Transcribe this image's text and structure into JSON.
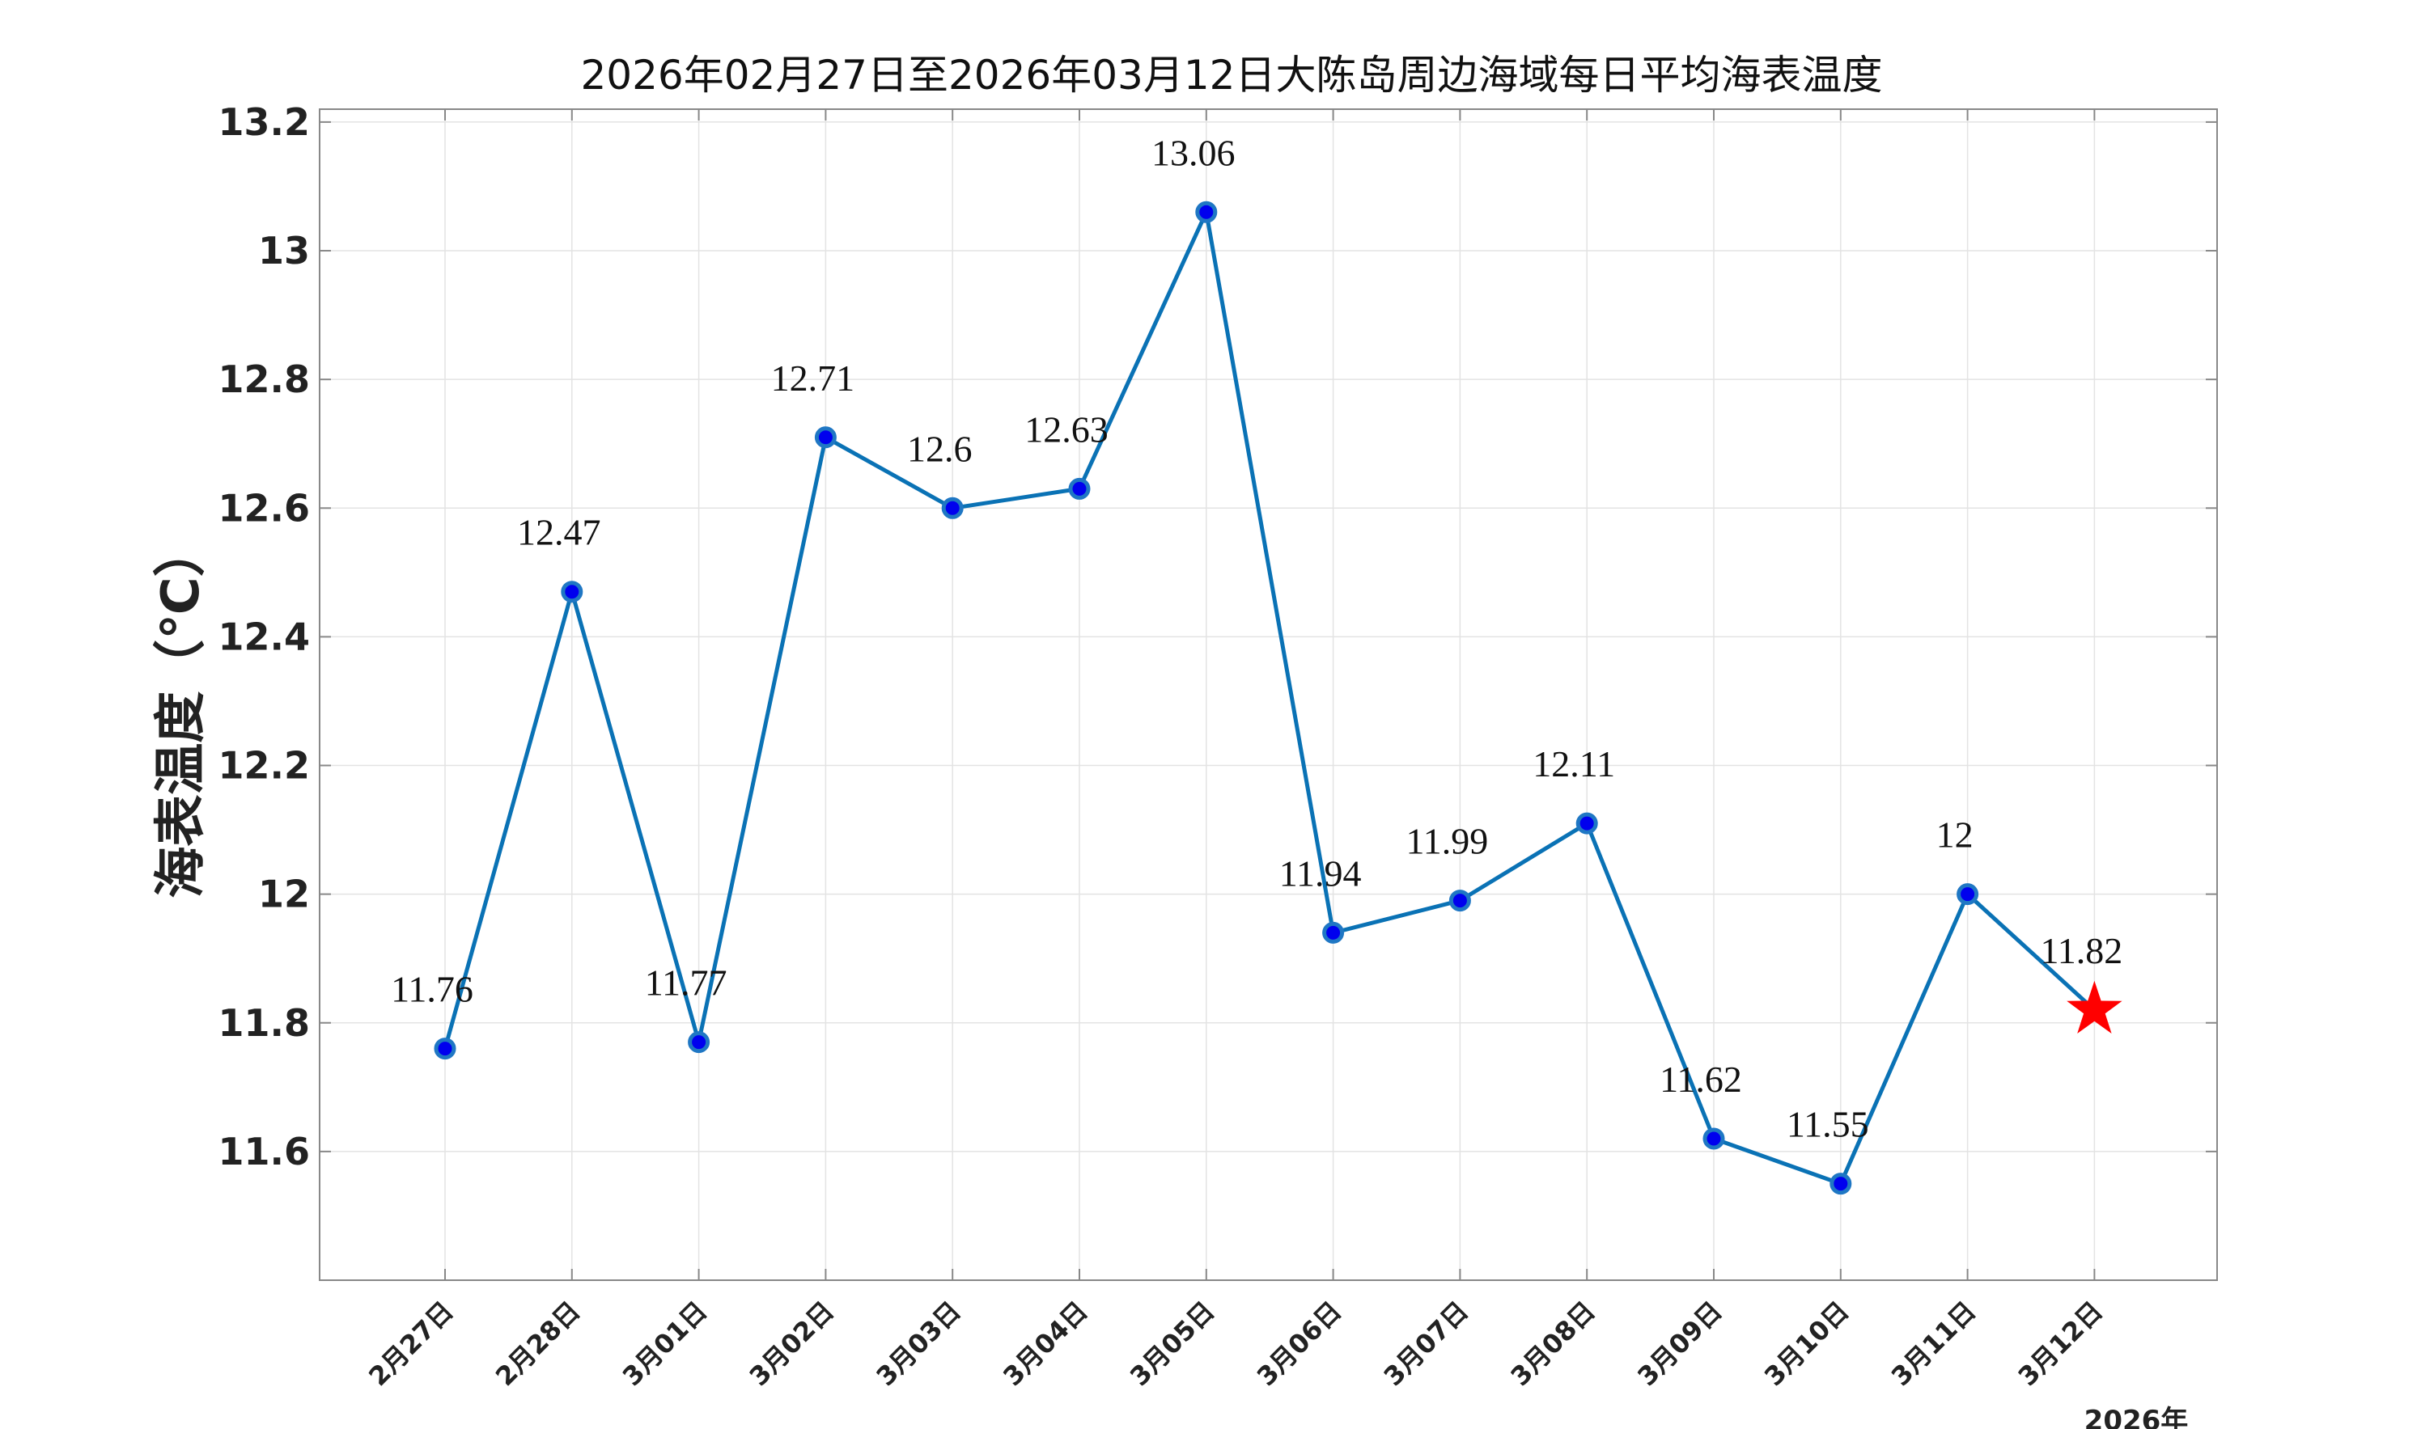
{
  "chart_data": {
    "type": "line",
    "title": "2026年02月27日至2026年03月12日大陈岛周边海域每日平均海表温度",
    "ylabel": "海表温度（℃）",
    "year_label": "2026年",
    "categories": [
      "2月27日",
      "2月28日",
      "3月01日",
      "3月02日",
      "3月03日",
      "3月04日",
      "3月05日",
      "3月06日",
      "3月07日",
      "3月08日",
      "3月09日",
      "3月10日",
      "3月11日",
      "3月12日"
    ],
    "values": [
      11.76,
      12.47,
      11.77,
      12.71,
      12.6,
      12.63,
      13.06,
      11.94,
      11.99,
      12.11,
      11.62,
      11.55,
      12,
      11.82
    ],
    "data_labels": [
      "11.76",
      "12.47",
      "11.77",
      "12.71",
      "12.6",
      "12.63",
      "13.06",
      "11.94",
      "11.99",
      "12.11",
      "11.62",
      "11.55",
      "12",
      "11.82"
    ],
    "highlight_last": true,
    "ylim": [
      11.4,
      13.22
    ],
    "yticks": [
      11.6,
      11.8,
      12,
      12.2,
      12.4,
      12.6,
      12.8,
      13,
      13.2
    ],
    "ytick_labels": [
      "11.6",
      "11.8",
      "12",
      "12.2",
      "12.4",
      "12.6",
      "12.8",
      "13",
      "13.2"
    ],
    "grid": true,
    "colors": {
      "line": "#0a72b5",
      "marker_fill": "#0000ee",
      "marker_edge": "#1f77c4",
      "highlight": "#ff0000",
      "grid": "#e3e3e3",
      "axis": "#888888"
    }
  }
}
